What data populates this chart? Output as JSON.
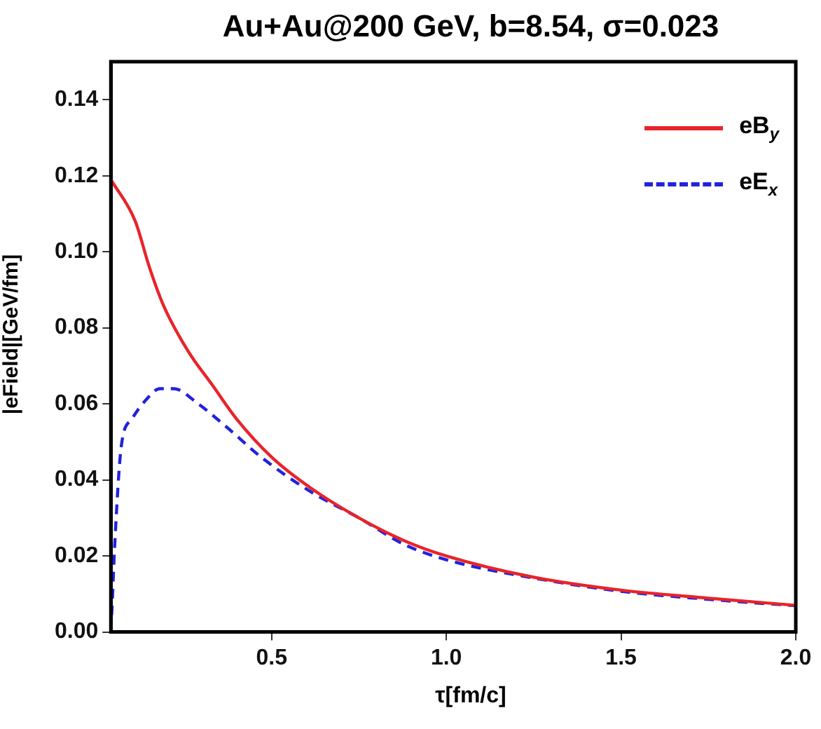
{
  "chart_data": {
    "type": "line",
    "title": "Au+Au@200 GeV, b=8.54, σ=0.023",
    "xlabel": "τ[fm/c]",
    "ylabel": "|eField|[GeV/fm]",
    "xlim": [
      0.04,
      2.0
    ],
    "ylim": [
      0,
      0.15
    ],
    "xticks": [
      0.5,
      {
        "value": 1.0,
        "label": "1.0"
      },
      1.5,
      {
        "value": 2.0,
        "label": "2.0"
      }
    ],
    "yticks": [
      {
        "value": 0,
        "label": "0.00"
      },
      {
        "value": 0.02,
        "label": "0.02"
      },
      {
        "value": 0.04,
        "label": "0.04"
      },
      {
        "value": 0.06,
        "label": "0.06"
      },
      {
        "value": 0.08,
        "label": "0.08"
      },
      {
        "value": 0.1,
        "label": "0.10"
      },
      {
        "value": 0.12,
        "label": "0.12"
      },
      {
        "value": 0.14,
        "label": "0.14"
      }
    ],
    "grid": false,
    "legend": "top right",
    "marker": "none",
    "series": [
      {
        "name": "eB$_{y}$",
        "color": "#e8242a",
        "line_style": "solid",
        "x": [
          0.04,
          0.11,
          0.15,
          0.19,
          0.26,
          0.33,
          0.4,
          0.5,
          0.61,
          0.75,
          0.88,
          1.0,
          1.25,
          1.5,
          1.75,
          2.0
        ],
        "values": [
          0.119,
          0.108,
          0.096,
          0.086,
          0.074,
          0.065,
          0.056,
          0.046,
          0.038,
          0.03,
          0.024,
          0.02,
          0.0144,
          0.011,
          0.0089,
          0.007
        ]
      },
      {
        "name": "eE$_{x}$",
        "color": "#2222dd",
        "line_style": "dashed",
        "x": [
          0.04,
          0.045,
          0.05,
          0.07,
          0.1,
          0.14,
          0.18,
          0.22,
          0.29,
          0.37,
          0.47,
          0.61,
          0.75,
          0.88,
          1.0,
          1.25,
          1.5,
          1.75,
          2.0
        ],
        "values": [
          0,
          0.01,
          0.021,
          0.049,
          0.056,
          0.061,
          0.064,
          0.064,
          0.06,
          0.054,
          0.046,
          0.037,
          0.03,
          0.023,
          0.019,
          0.0142,
          0.0107,
          0.0086,
          0.0069
        ]
      }
    ]
  }
}
